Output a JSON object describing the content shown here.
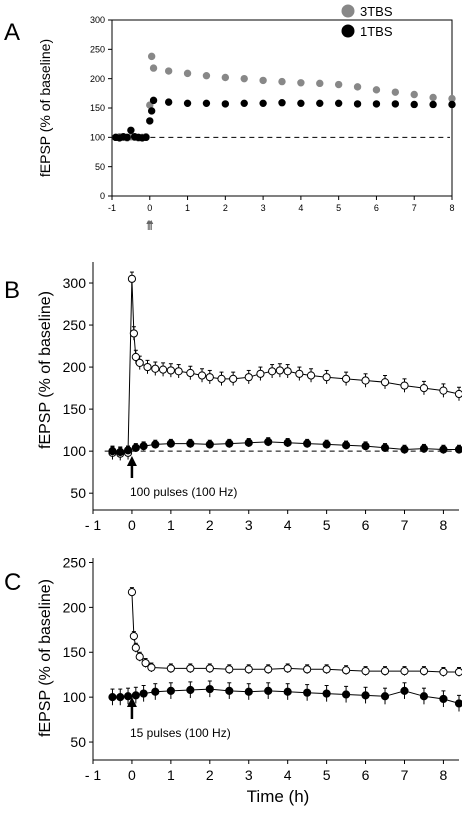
{
  "figure": {
    "xlabel": "Time (h)"
  },
  "chart_data": [
    {
      "type": "scatter",
      "panel_label": "A",
      "ylabel": "fEPSP (% of baseline)",
      "xlim": [
        -1,
        8
      ],
      "ylim": [
        0,
        300
      ],
      "xticks": [
        -1,
        0,
        1,
        2,
        3,
        4,
        5,
        6,
        7,
        8
      ],
      "yticks": [
        0,
        50,
        100,
        150,
        200,
        250,
        300
      ],
      "baseline": 100,
      "stim_times": [
        -0.04,
        0.0,
        0.04
      ],
      "legend": "top-right",
      "series": [
        {
          "name": "3TBS",
          "color": "#888888",
          "x": [
            -0.9,
            -0.8,
            -0.7,
            -0.6,
            -0.5,
            -0.4,
            -0.3,
            -0.2,
            -0.1,
            0.0,
            0.05,
            0.1,
            0.5,
            1,
            1.5,
            2,
            2.5,
            3,
            3.5,
            4,
            4.5,
            5,
            5.5,
            6,
            6.5,
            7,
            7.5,
            8
          ],
          "y": [
            100,
            101,
            100,
            99,
            101,
            100,
            99,
            100,
            101,
            155,
            238,
            218,
            213,
            209,
            205,
            202,
            200,
            197,
            195,
            193,
            192,
            190,
            186,
            181,
            177,
            173,
            168,
            166
          ]
        },
        {
          "name": "1TBS",
          "color": "#000000",
          "x": [
            -0.9,
            -0.8,
            -0.7,
            -0.6,
            -0.5,
            -0.4,
            -0.3,
            -0.2,
            -0.1,
            0.0,
            0.05,
            0.1,
            0.5,
            1,
            1.5,
            2,
            2.5,
            3,
            3.5,
            4,
            4.5,
            5,
            5.5,
            6,
            6.5,
            7,
            7.5,
            8
          ],
          "y": [
            100,
            99,
            101,
            100,
            112,
            101,
            100,
            99,
            100,
            128,
            145,
            163,
            160,
            158,
            158,
            157,
            158,
            158,
            159,
            158,
            158,
            158,
            157,
            157,
            157,
            156,
            156,
            156
          ]
        }
      ]
    },
    {
      "type": "line",
      "panel_label": "B",
      "ylabel": "fEPSP (% of baseline)",
      "xlim": [
        -1,
        8.4
      ],
      "ylim": [
        30,
        325
      ],
      "xticks": [
        -1,
        0,
        1,
        2,
        3,
        4,
        5,
        6,
        7,
        8
      ],
      "xtick_labels": [
        "- 1",
        "0",
        "1",
        "2",
        "3",
        "4",
        "5",
        "6",
        "7",
        "8"
      ],
      "yticks": [
        50,
        100,
        150,
        200,
        250,
        300
      ],
      "baseline": 100,
      "annotation": "100 pulses (100 Hz)",
      "series": [
        {
          "marker": "open-circle",
          "x": [
            -0.5,
            -0.3,
            -0.1,
            0.0,
            0.05,
            0.1,
            0.2,
            0.4,
            0.6,
            0.8,
            1.0,
            1.2,
            1.5,
            1.8,
            2.0,
            2.3,
            2.6,
            3.0,
            3.3,
            3.6,
            3.8,
            4.0,
            4.3,
            4.6,
            5.0,
            5.5,
            6.0,
            6.5,
            7.0,
            7.5,
            8.0,
            8.4
          ],
          "y": [
            98,
            97,
            98,
            305,
            240,
            212,
            205,
            200,
            198,
            197,
            196,
            195,
            193,
            190,
            188,
            186,
            186,
            188,
            192,
            195,
            196,
            195,
            192,
            190,
            188,
            186,
            184,
            182,
            178,
            175,
            172,
            168
          ],
          "error": 8
        },
        {
          "marker": "filled-circle",
          "x": [
            -0.5,
            -0.3,
            -0.1,
            0.1,
            0.3,
            0.6,
            1.0,
            1.5,
            2.0,
            2.5,
            3.0,
            3.5,
            4.0,
            4.5,
            5.0,
            5.5,
            6.0,
            6.5,
            7.0,
            7.5,
            8.0,
            8.4
          ],
          "y": [
            100,
            99,
            101,
            104,
            106,
            108,
            109,
            109,
            108,
            109,
            110,
            111,
            110,
            109,
            108,
            107,
            106,
            104,
            102,
            103,
            102,
            102
          ],
          "error": 5
        }
      ]
    },
    {
      "type": "line",
      "panel_label": "C",
      "ylabel": "fEPSP (% of baseline)",
      "xlim": [
        -1,
        8.4
      ],
      "ylim": [
        30,
        255
      ],
      "xticks": [
        -1,
        0,
        1,
        2,
        3,
        4,
        5,
        6,
        7,
        8
      ],
      "xtick_labels": [
        "- 1",
        "0",
        "1",
        "2",
        "3",
        "4",
        "5",
        "6",
        "7",
        "8"
      ],
      "yticks": [
        50,
        100,
        150,
        200,
        250
      ],
      "annotation": "15 pulses (100 Hz)",
      "series": [
        {
          "marker": "open-circle",
          "x": [
            0.0,
            0.05,
            0.1,
            0.2,
            0.35,
            0.5,
            1.0,
            1.5,
            2.0,
            2.5,
            3.0,
            3.5,
            4.0,
            4.5,
            5.0,
            5.5,
            6.0,
            6.5,
            7.0,
            7.5,
            8.0,
            8.4
          ],
          "y": [
            217,
            168,
            155,
            145,
            138,
            133,
            132,
            132,
            132,
            131,
            131,
            131,
            132,
            131,
            131,
            130,
            129,
            129,
            129,
            129,
            128,
            128
          ],
          "error": 5
        },
        {
          "marker": "filled-circle",
          "x": [
            -0.5,
            -0.3,
            -0.1,
            0.1,
            0.3,
            0.6,
            1.0,
            1.5,
            2.0,
            2.5,
            3.0,
            3.5,
            4.0,
            4.5,
            5.0,
            5.5,
            6.0,
            6.5,
            7.0,
            7.5,
            8.0,
            8.4
          ],
          "y": [
            100,
            100,
            101,
            102,
            104,
            106,
            107,
            108,
            109,
            107,
            106,
            107,
            106,
            105,
            104,
            103,
            102,
            101,
            107,
            101,
            98,
            93
          ],
          "error": 9
        }
      ]
    }
  ]
}
